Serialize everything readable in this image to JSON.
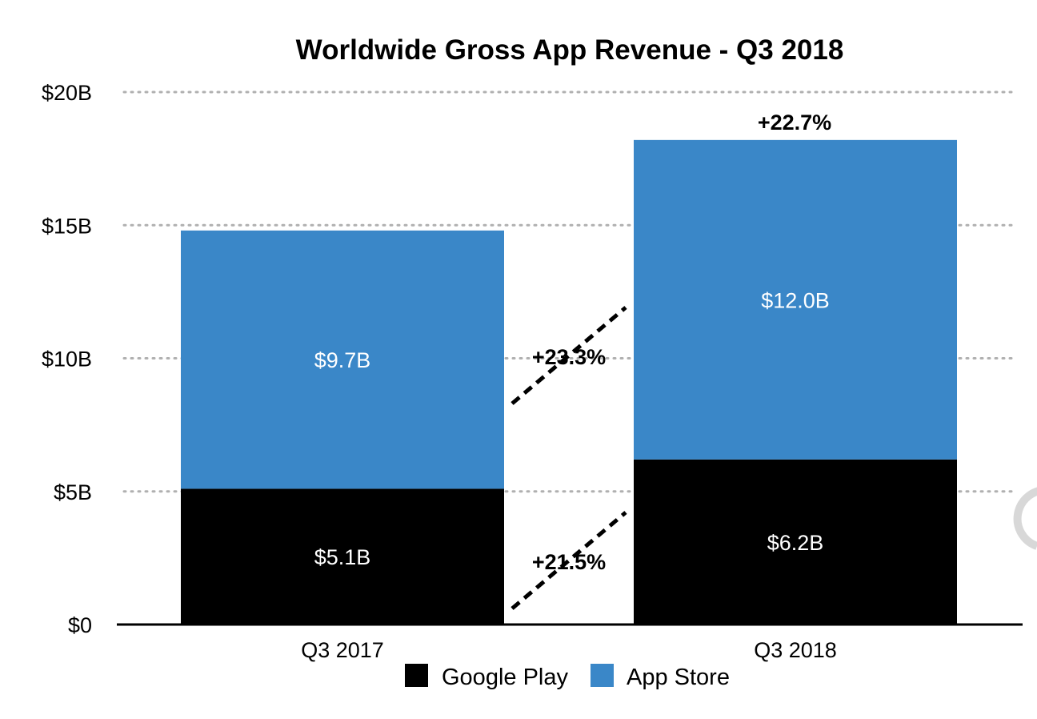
{
  "chart_data": {
    "type": "bar",
    "stacked": true,
    "title": "Worldwide Gross App Revenue - Q3 2018",
    "xlabel": "",
    "ylabel": "",
    "categories": [
      "Q3 2017",
      "Q3 2018"
    ],
    "series": [
      {
        "name": "Google Play",
        "values": [
          5.1,
          6.2
        ],
        "labels": [
          "$5.1B",
          "$6.2B"
        ],
        "color": "#000000"
      },
      {
        "name": "App Store",
        "values": [
          9.7,
          12.0
        ],
        "labels": [
          "$9.7B",
          "$12.0B"
        ],
        "color": "#3a87c8"
      }
    ],
    "ylim": [
      0,
      20
    ],
    "yticks": [
      0,
      5,
      10,
      15,
      20
    ],
    "ytick_labels": [
      "$0",
      "$5B",
      "$10B",
      "$15B",
      "$20B"
    ],
    "grid": true,
    "legend_position": "bottom-center",
    "annotations": {
      "google_play_growth": "+21.5%",
      "app_store_growth": "+23.3%",
      "total_growth": "+22.7%"
    }
  }
}
